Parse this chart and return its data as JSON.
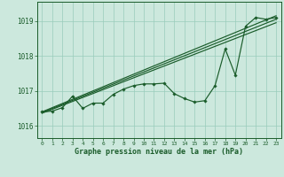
{
  "xlabel": "Graphe pression niveau de la mer (hPa)",
  "background_color": "#cce8dd",
  "plot_bg_color": "#cce8dd",
  "grid_color": "#99ccbb",
  "line_color": "#1a5c2a",
  "xlim": [
    -0.5,
    23.5
  ],
  "ylim": [
    1015.65,
    1019.55
  ],
  "yticks": [
    1016,
    1017,
    1018,
    1019
  ],
  "xticks": [
    0,
    1,
    2,
    3,
    4,
    5,
    6,
    7,
    8,
    9,
    10,
    11,
    12,
    13,
    14,
    15,
    16,
    17,
    18,
    19,
    20,
    21,
    22,
    23
  ],
  "straight_line1": [
    1016.4,
    1019.15
  ],
  "straight_line2": [
    1016.38,
    1019.05
  ],
  "straight_line3": [
    1016.36,
    1018.95
  ],
  "main_series": [
    1016.4,
    1016.42,
    1016.52,
    1016.85,
    1016.5,
    1016.65,
    1016.65,
    1016.9,
    1017.05,
    1017.15,
    1017.2,
    1017.2,
    1017.22,
    1016.92,
    1016.78,
    1016.68,
    1016.72,
    1017.15,
    1018.2,
    1017.45,
    1018.85,
    1019.1,
    1019.05,
    1019.1
  ]
}
